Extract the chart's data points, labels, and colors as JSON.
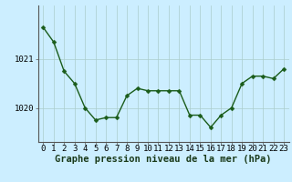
{
  "x": [
    0,
    1,
    2,
    3,
    4,
    5,
    6,
    7,
    8,
    9,
    10,
    11,
    12,
    13,
    14,
    15,
    16,
    17,
    18,
    19,
    20,
    21,
    22,
    23
  ],
  "y": [
    1021.65,
    1021.35,
    1020.75,
    1020.5,
    1020.0,
    1019.75,
    1019.8,
    1019.8,
    1020.25,
    1020.4,
    1020.35,
    1020.35,
    1020.35,
    1020.35,
    1019.85,
    1019.85,
    1019.6,
    1019.85,
    1020.0,
    1020.5,
    1020.65,
    1020.65,
    1020.6,
    1020.8
  ],
  "line_color": "#1a5c1a",
  "marker": "D",
  "marker_size": 2.5,
  "line_width": 1.0,
  "bg_color": "#cceeff",
  "grid_color": "#aacccc",
  "yticks": [
    1020,
    1021
  ],
  "xlabel": "Graphe pression niveau de la mer (hPa)",
  "xlabel_fontsize": 7.5,
  "tick_fontsize": 6.5,
  "ylim": [
    1019.3,
    1022.1
  ],
  "xlim": [
    -0.5,
    23.5
  ]
}
